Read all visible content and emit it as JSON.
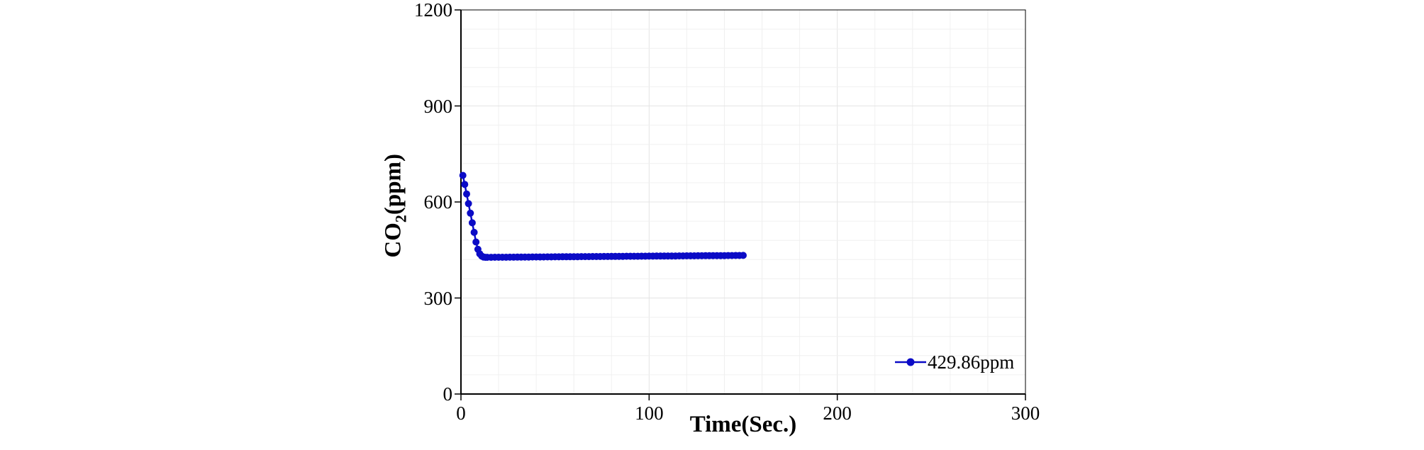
{
  "chart_data": {
    "type": "line",
    "title": "",
    "xlabel": "Time(Sec.)",
    "ylabel_parts": {
      "main": "CO",
      "sub": "2",
      "rest": "(ppm)"
    },
    "ylabel_text": "CO2(ppm)",
    "xlim": [
      0,
      300
    ],
    "ylim": [
      0,
      1200
    ],
    "xticks": [
      0,
      100,
      200,
      300
    ],
    "yticks": [
      0,
      300,
      600,
      900,
      1200
    ],
    "minor_grid_step_x": 20,
    "minor_grid_step_y": 60,
    "grid_minor_color": "#f0f0f0",
    "grid_major_color": "#e4e4e4",
    "axis_color": "#000000",
    "legend": {
      "label": "429.86ppm",
      "position": "inside-bottom-right"
    },
    "series": [
      {
        "name": "429.86ppm",
        "color": "#0b0bc6",
        "marker": "circle",
        "x": [
          1,
          2,
          3,
          4,
          5,
          6,
          7,
          8,
          9,
          10,
          11,
          12,
          13,
          14,
          16,
          18,
          20,
          22,
          24,
          26,
          28,
          30,
          32,
          34,
          36,
          38,
          40,
          42,
          44,
          46,
          48,
          50,
          52,
          54,
          56,
          58,
          60,
          62,
          64,
          66,
          68,
          70,
          72,
          74,
          76,
          78,
          80,
          82,
          84,
          86,
          88,
          90,
          92,
          94,
          96,
          98,
          100,
          102,
          104,
          106,
          108,
          110,
          112,
          114,
          116,
          118,
          120,
          122,
          124,
          126,
          128,
          130,
          132,
          134,
          136,
          138,
          140,
          142,
          144,
          146,
          148,
          150
        ],
        "y": [
          683,
          655,
          625,
          595,
          565,
          535,
          505,
          475,
          452,
          438,
          431,
          428,
          427,
          427.0,
          427.1,
          427.2,
          427.3,
          427.4,
          427.4,
          427.5,
          427.6,
          427.7,
          427.8,
          427.9,
          428.0,
          428.1,
          428.1,
          428.2,
          428.3,
          428.4,
          428.5,
          428.6,
          428.7,
          428.8,
          428.9,
          428.9,
          429.0,
          429.1,
          429.2,
          429.3,
          429.4,
          429.5,
          429.6,
          429.6,
          429.7,
          429.8,
          429.9,
          430.0,
          430.1,
          430.2,
          430.3,
          430.4,
          430.4,
          430.5,
          430.6,
          430.7,
          430.8,
          430.9,
          431.0,
          431.1,
          431.1,
          431.2,
          431.3,
          431.4,
          431.5,
          431.6,
          431.7,
          431.8,
          431.8,
          431.9,
          432.0,
          432.1,
          432.2,
          432.3,
          432.4,
          432.5,
          432.5,
          432.6,
          432.7,
          432.8,
          432.9,
          433.0
        ]
      }
    ]
  }
}
